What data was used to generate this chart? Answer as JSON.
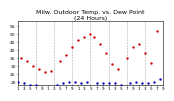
{
  "title": "Milw. Outdoor Temp. vs. Dew Point\n(24 Hours)",
  "title_fontsize": 4.5,
  "temp_color": "#cc0000",
  "dew_color": "#0000bb",
  "grid_color": "#aaaaaa",
  "bg_color": "#ffffff",
  "ylim": [
    18,
    58
  ],
  "xlim": [
    0,
    48
  ],
  "ylabel_fontsize": 3.2,
  "xlabel_fontsize": 3.0,
  "yticks": [
    20,
    25,
    30,
    35,
    40,
    45,
    50,
    55
  ],
  "ytick_labels": [
    "20",
    "25",
    "30",
    "35",
    "40",
    "45",
    "50",
    "55"
  ],
  "xtick_positions": [
    0,
    2,
    4,
    6,
    8,
    10,
    12,
    14,
    16,
    18,
    20,
    22,
    24,
    26,
    28,
    30,
    32,
    34,
    36,
    38,
    40,
    42,
    44,
    46,
    48
  ],
  "xtick_labels": [
    "1",
    "3",
    "5",
    "7",
    "9",
    "1",
    "3",
    "5",
    "7",
    "9",
    "1",
    "3",
    "5",
    "7",
    "9",
    "1",
    "3",
    "5",
    "7",
    "9",
    "1",
    "3",
    "5",
    "7",
    "9"
  ],
  "vgrid_positions": [
    6,
    12,
    18,
    24,
    30,
    36,
    42
  ],
  "temp_x": [
    1,
    3,
    5,
    7,
    9,
    11,
    14,
    16,
    18,
    20,
    22,
    24,
    25,
    27,
    29,
    31,
    33,
    36,
    38,
    40,
    42,
    44,
    46
  ],
  "temp_y": [
    35,
    33,
    30,
    28,
    26,
    27,
    33,
    37,
    42,
    46,
    48,
    50,
    48,
    44,
    38,
    31,
    28,
    35,
    42,
    44,
    38,
    32,
    52
  ],
  "dew_x": [
    0,
    2,
    4,
    6,
    8,
    10,
    13,
    15,
    17,
    19,
    21,
    23,
    26,
    28,
    30,
    32,
    34,
    37,
    39,
    41,
    43,
    45,
    47
  ],
  "dew_y": [
    20,
    19,
    18,
    18,
    17,
    17,
    18,
    19,
    20,
    20,
    19,
    20,
    19,
    19,
    19,
    19,
    18,
    19,
    20,
    19,
    19,
    20,
    22
  ],
  "marker_size": 2.0,
  "dot_marker": ".",
  "linewidth": 0
}
